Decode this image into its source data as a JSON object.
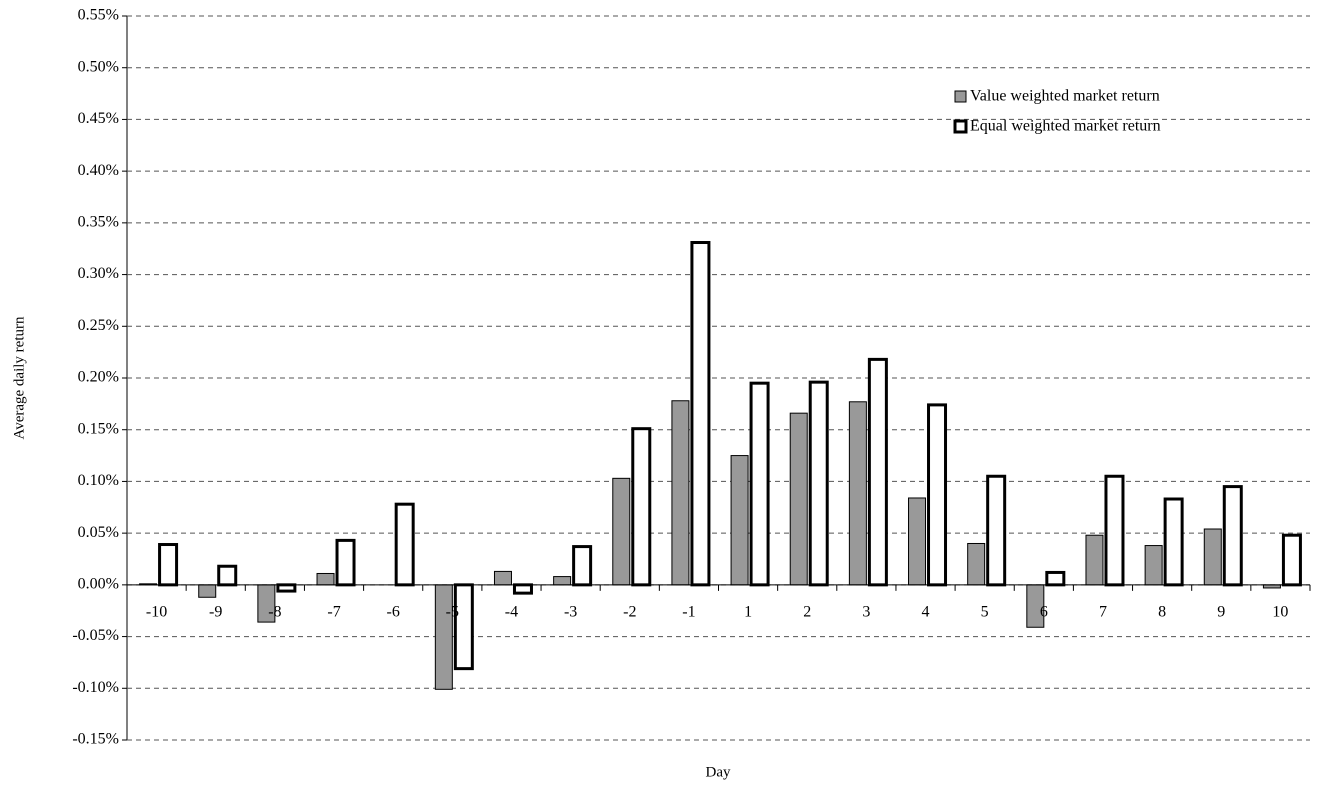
{
  "chart_data": {
    "type": "bar",
    "x_label": "Day",
    "y_label": "Average daily return",
    "categories": [
      "-10",
      "-9",
      "-8",
      "-7",
      "-6",
      "-5",
      "-4",
      "-3",
      "-2",
      "-1",
      "1",
      "2",
      "3",
      "4",
      "5",
      "6",
      "7",
      "8",
      "9",
      "10"
    ],
    "series": [
      {
        "name": "Value weighted market return",
        "color": "#999999",
        "values": [
          0.001,
          -0.012,
          -0.036,
          0.011,
          0.0,
          -0.101,
          0.013,
          0.008,
          0.103,
          0.178,
          0.125,
          0.166,
          0.177,
          0.084,
          0.04,
          -0.041,
          0.048,
          0.038,
          0.054,
          -0.003
        ]
      },
      {
        "name": "Equal weighted market return",
        "color": "#ffffff",
        "values": [
          0.039,
          0.018,
          -0.006,
          0.043,
          0.078,
          -0.081,
          -0.008,
          0.037,
          0.151,
          0.331,
          0.195,
          0.196,
          0.218,
          0.174,
          0.105,
          0.012,
          0.105,
          0.083,
          0.095,
          0.048
        ]
      }
    ],
    "ylim": [
      -0.15,
      0.55
    ],
    "yticks": [
      {
        "value": -0.15,
        "label": "-0.15%"
      },
      {
        "value": -0.1,
        "label": "-0.10%"
      },
      {
        "value": -0.05,
        "label": "-0.05%"
      },
      {
        "value": 0.0,
        "label": "0.00%"
      },
      {
        "value": 0.05,
        "label": "0.05%"
      },
      {
        "value": 0.1,
        "label": "0.10%"
      },
      {
        "value": 0.15,
        "label": "0.15%"
      },
      {
        "value": 0.2,
        "label": "0.20%"
      },
      {
        "value": 0.25,
        "label": "0.25%"
      },
      {
        "value": 0.3,
        "label": "0.30%"
      },
      {
        "value": 0.35,
        "label": "0.35%"
      },
      {
        "value": 0.4,
        "label": "0.40%"
      },
      {
        "value": 0.45,
        "label": "0.45%"
      },
      {
        "value": 0.5,
        "label": "0.50%"
      },
      {
        "value": 0.55,
        "label": "0.55%"
      }
    ],
    "grid": true,
    "legend": "upper right"
  }
}
